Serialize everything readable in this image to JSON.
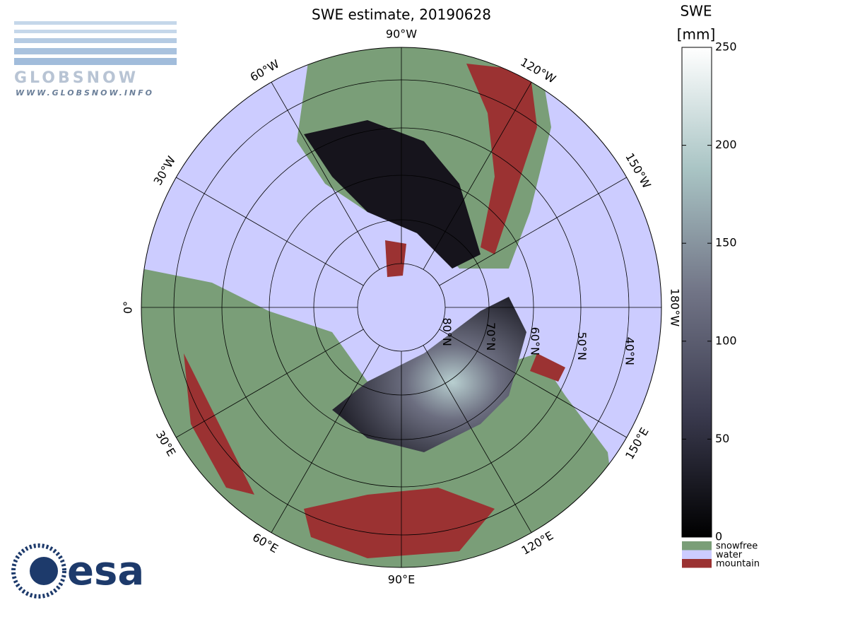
{
  "title": "SWE estimate, 20190628",
  "logo": {
    "name": "GLOBSNOW",
    "url": "WWW.GLOBSNOW.INFO",
    "agency": "esa"
  },
  "map": {
    "meridians": [
      "90°W",
      "120°W",
      "150°W",
      "180°W",
      "150°E",
      "120°E",
      "90°E",
      "60°E",
      "30°E",
      "0°",
      "30°W",
      "60°W"
    ],
    "parallels": [
      "80°N",
      "70°N",
      "60°N",
      "50°N",
      "40°N"
    ]
  },
  "swe_scale": {
    "label": [
      "SWE",
      "[mm]"
    ],
    "lim": [
      0,
      250
    ],
    "ticks": [
      0,
      50,
      100,
      150,
      200,
      250
    ]
  },
  "legend": [
    {
      "label": "snowfree",
      "color": "#7a9e78"
    },
    {
      "label": "water",
      "color": "#ccccff"
    },
    {
      "label": "mountain",
      "color": "#9b3232"
    }
  ]
}
